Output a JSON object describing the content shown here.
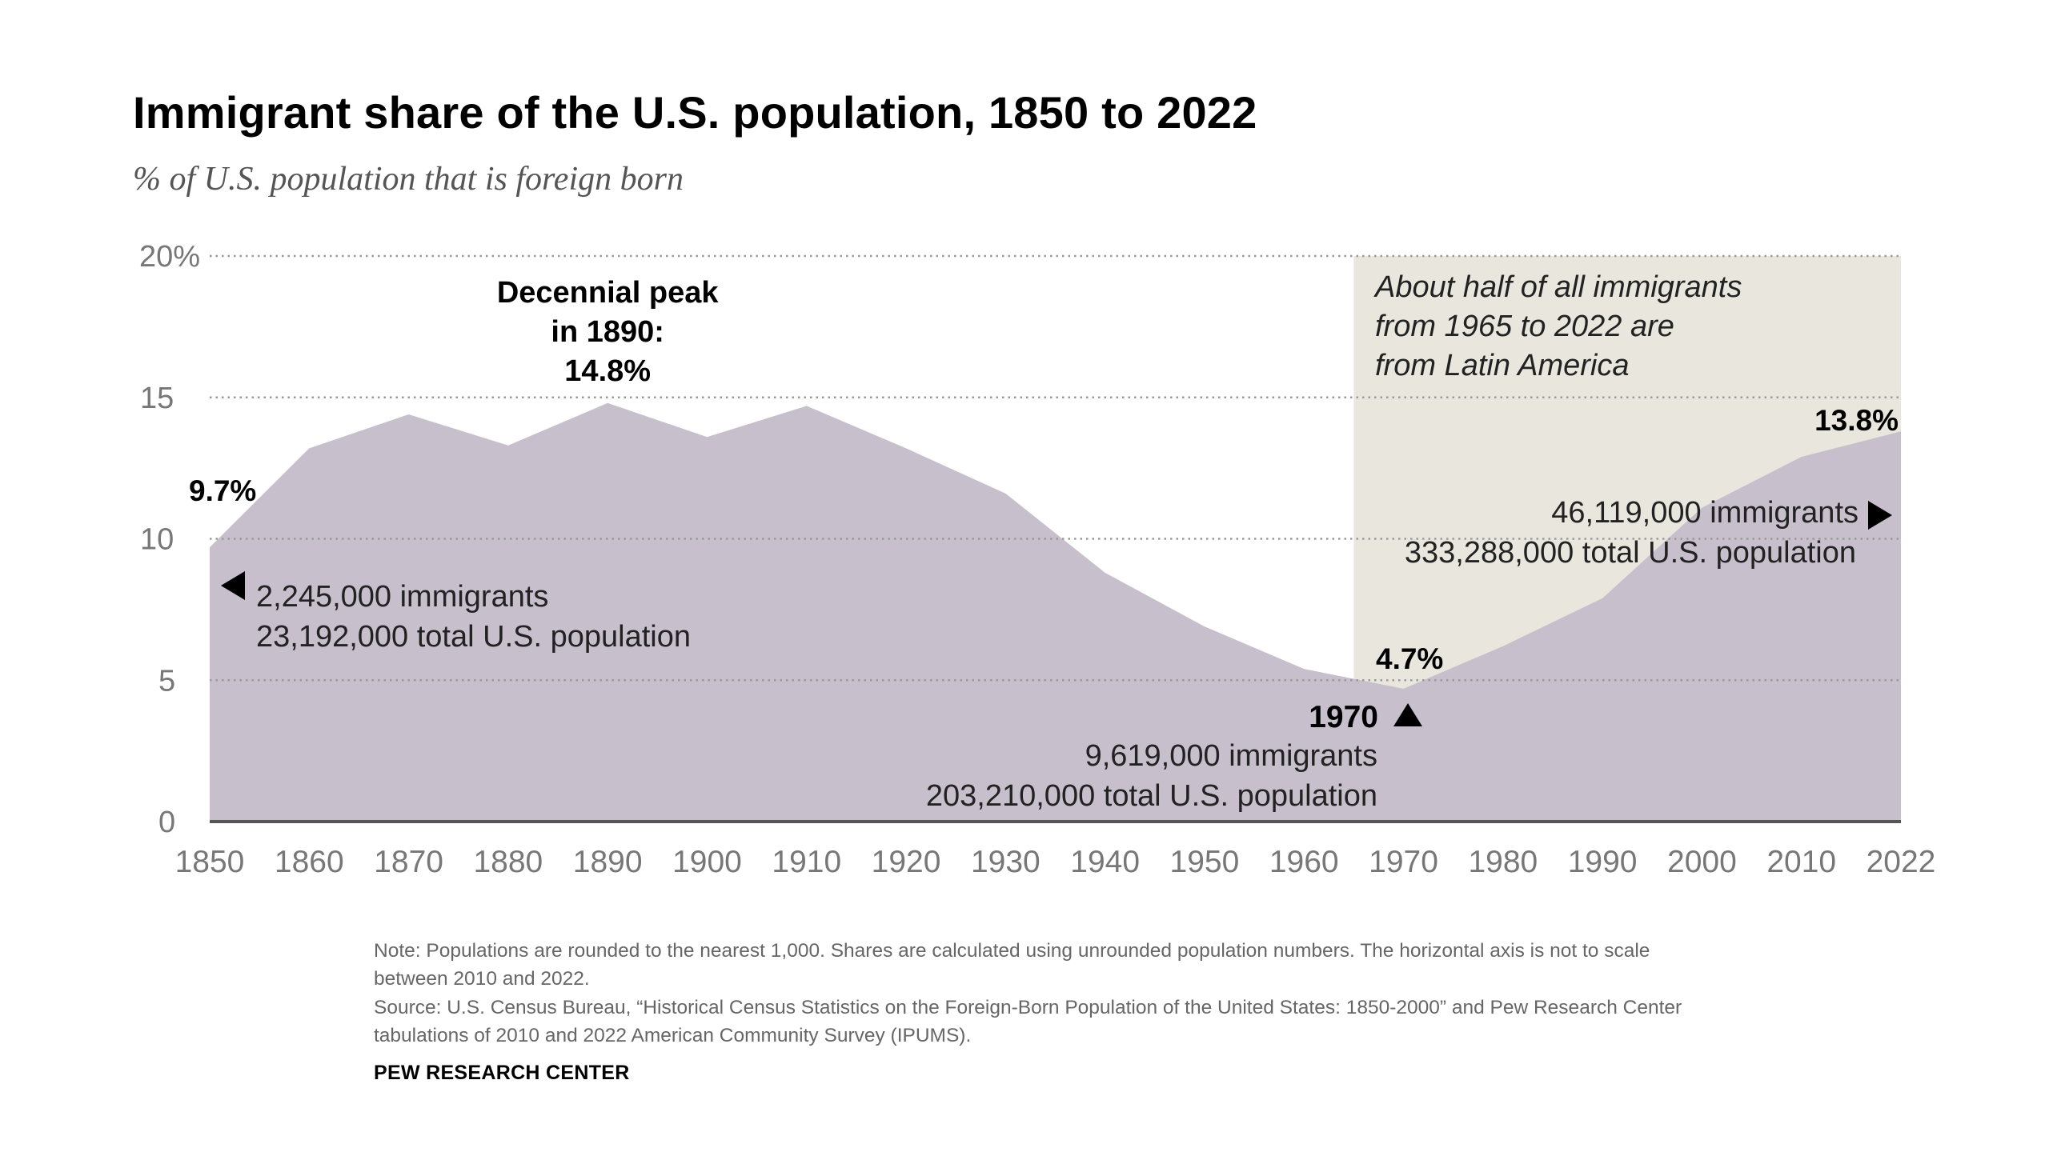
{
  "chart_data": {
    "type": "area",
    "title": "Immigrant share of the U.S. population, 1850 to 2022",
    "subtitle": "% of U.S. population that is foreign born",
    "xlabel": "",
    "ylabel": "",
    "x": [
      1850,
      1860,
      1870,
      1880,
      1890,
      1900,
      1910,
      1920,
      1930,
      1940,
      1950,
      1960,
      1970,
      1980,
      1990,
      2000,
      2010,
      2022
    ],
    "x_tick_labels": [
      "1850",
      "1860",
      "1870",
      "1880",
      "1890",
      "1900",
      "1910",
      "1920",
      "1930",
      "1940",
      "1950",
      "1960",
      "1970",
      "1980",
      "1990",
      "2000",
      "2010",
      "2022"
    ],
    "series": [
      {
        "values": [
          9.7,
          13.2,
          14.4,
          13.3,
          14.8,
          13.6,
          14.7,
          13.2,
          11.6,
          8.8,
          6.9,
          5.4,
          4.7,
          6.2,
          7.9,
          11.1,
          12.9,
          13.8
        ]
      }
    ],
    "ylim": [
      0,
      20
    ],
    "y_ticks": [
      0,
      5,
      10,
      15,
      20
    ],
    "y_tick_labels": [
      "0",
      "5",
      "10",
      "15",
      "20%"
    ],
    "grid": "horizontal dotted",
    "colors": {
      "area": "#c8bfcd",
      "highlight_band": "#e9e7dd",
      "axis": "#555555",
      "grid": "#9a9a9a"
    },
    "highlight_band": {
      "x_start": 1965,
      "x_end": 2022
    },
    "annotations": {
      "peak": [
        "Decennial peak",
        "in 1890:",
        "14.8%"
      ],
      "band_note": [
        "About half of all immigrants",
        "from 1965 to 2022 are",
        "from Latin America"
      ],
      "start_value": "9.7%",
      "start_detail": [
        "2,245,000 immigrants",
        "23,192,000 total U.S. population"
      ],
      "low_value": "4.7%",
      "low_year": "1970",
      "low_detail": [
        "9,619,000 immigrants",
        "203,210,000 total U.S. population"
      ],
      "end_value": "13.8%",
      "end_detail": [
        "46,119,000 immigrants",
        "333,288,000 total U.S. population"
      ]
    }
  },
  "footer": {
    "note": "Note: Populations are rounded to the nearest 1,000. Shares are calculated using unrounded population numbers. The horizontal axis is not to scale between 2010 and 2022.",
    "source": "Source: U.S. Census Bureau, “Historical Census Statistics on the Foreign-Born Population of the United States: 1850-2000” and Pew Research Center tabulations of 2010 and 2022 American Community Survey (IPUMS).",
    "credit": "PEW RESEARCH CENTER"
  }
}
